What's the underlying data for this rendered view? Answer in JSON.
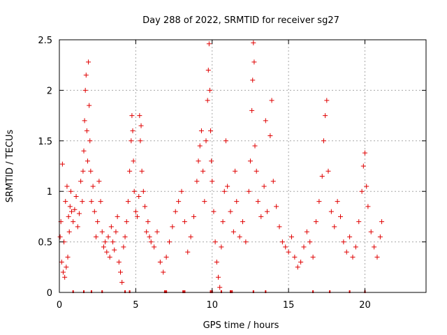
{
  "chart_data": {
    "type": "scatter",
    "title": "Day 288 of 2022, SRMTID for receiver sg27",
    "xlabel": "GPS time / hours",
    "ylabel": "SRMTID / TECUs",
    "xlim": [
      0,
      24
    ],
    "ylim": [
      0,
      2.5
    ],
    "x_ticks": [
      0,
      5,
      10,
      15,
      20
    ],
    "x_tick_labels": [
      "0",
      "5",
      "10",
      "15",
      "20"
    ],
    "y_ticks": [
      0,
      0.5,
      1,
      1.5,
      2,
      2.5
    ],
    "y_tick_labels": [
      "0",
      "0.5",
      "1",
      "1.5",
      "2",
      "2.5"
    ],
    "grid": true,
    "marker": "+",
    "color": "#e00000",
    "series": [
      {
        "name": "SRMTID",
        "points": [
          [
            0.05,
            0.55
          ],
          [
            0.1,
            0.7
          ],
          [
            0.15,
            0.3
          ],
          [
            0.2,
            1.27
          ],
          [
            0.25,
            0.2
          ],
          [
            0.3,
            0.5
          ],
          [
            0.35,
            0.15
          ],
          [
            0.4,
            0.9
          ],
          [
            0.45,
            0.25
          ],
          [
            0.5,
            1.05
          ],
          [
            0.55,
            0.35
          ],
          [
            0.6,
            0.75
          ],
          [
            0.65,
            0.6
          ],
          [
            0.7,
            0.85
          ],
          [
            0.75,
            1.0
          ],
          [
            0.8,
            0.8
          ],
          [
            0.9,
            0.7
          ],
          [
            1.0,
            0.82
          ],
          [
            1.1,
            0.95
          ],
          [
            1.2,
            0.65
          ],
          [
            1.3,
            0.78
          ],
          [
            1.4,
            1.1
          ],
          [
            1.5,
            0.9
          ],
          [
            1.55,
            1.2
          ],
          [
            1.6,
            1.4
          ],
          [
            1.65,
            1.7
          ],
          [
            1.7,
            2.0
          ],
          [
            1.75,
            2.15
          ],
          [
            1.8,
            1.6
          ],
          [
            1.85,
            1.3
          ],
          [
            1.9,
            2.28
          ],
          [
            1.95,
            1.85
          ],
          [
            2.0,
            1.5
          ],
          [
            2.05,
            1.2
          ],
          [
            2.1,
            0.9
          ],
          [
            2.2,
            1.05
          ],
          [
            2.3,
            0.8
          ],
          [
            2.4,
            0.55
          ],
          [
            2.5,
            0.7
          ],
          [
            2.6,
            1.1
          ],
          [
            2.7,
            0.9
          ],
          [
            2.8,
            0.6
          ],
          [
            2.9,
            0.45
          ],
          [
            3.0,
            0.5
          ],
          [
            3.1,
            0.4
          ],
          [
            3.2,
            0.55
          ],
          [
            3.3,
            0.35
          ],
          [
            3.4,
            0.65
          ],
          [
            3.5,
            0.5
          ],
          [
            3.6,
            0.42
          ],
          [
            3.7,
            0.6
          ],
          [
            3.8,
            0.75
          ],
          [
            3.9,
            0.3
          ],
          [
            4.0,
            0.2
          ],
          [
            4.1,
            0.1
          ],
          [
            4.2,
            0.45
          ],
          [
            4.3,
            0.55
          ],
          [
            4.4,
            0.7
          ],
          [
            4.5,
            0.9
          ],
          [
            4.6,
            1.2
          ],
          [
            4.7,
            1.5
          ],
          [
            4.75,
            1.75
          ],
          [
            4.8,
            1.6
          ],
          [
            4.85,
            1.3
          ],
          [
            4.9,
            1.0
          ],
          [
            5.0,
            0.8
          ],
          [
            5.1,
            0.75
          ],
          [
            5.2,
            0.95
          ],
          [
            5.25,
            1.75
          ],
          [
            5.3,
            1.5
          ],
          [
            5.35,
            1.65
          ],
          [
            5.4,
            1.2
          ],
          [
            5.5,
            1.0
          ],
          [
            5.6,
            0.85
          ],
          [
            5.7,
            0.6
          ],
          [
            5.8,
            0.7
          ],
          [
            5.9,
            0.55
          ],
          [
            6.0,
            0.5
          ],
          [
            6.2,
            0.45
          ],
          [
            6.4,
            0.6
          ],
          [
            6.6,
            0.3
          ],
          [
            6.8,
            0.2
          ],
          [
            7.0,
            0.35
          ],
          [
            7.2,
            0.5
          ],
          [
            7.4,
            0.65
          ],
          [
            7.6,
            0.8
          ],
          [
            7.8,
            0.9
          ],
          [
            8.0,
            1.0
          ],
          [
            8.2,
            0.7
          ],
          [
            8.4,
            0.4
          ],
          [
            8.6,
            0.55
          ],
          [
            8.8,
            0.75
          ],
          [
            9.0,
            1.1
          ],
          [
            9.1,
            1.3
          ],
          [
            9.2,
            1.45
          ],
          [
            9.3,
            1.6
          ],
          [
            9.4,
            1.2
          ],
          [
            9.5,
            0.9
          ],
          [
            9.6,
            1.5
          ],
          [
            9.7,
            1.9
          ],
          [
            9.75,
            2.2
          ],
          [
            9.8,
            2.46
          ],
          [
            9.85,
            2.0
          ],
          [
            9.9,
            1.6
          ],
          [
            9.95,
            1.3
          ],
          [
            10.0,
            1.1
          ],
          [
            10.1,
            0.8
          ],
          [
            10.2,
            0.5
          ],
          [
            10.3,
            0.3
          ],
          [
            10.4,
            0.15
          ],
          [
            10.5,
            0.05
          ],
          [
            10.6,
            0.45
          ],
          [
            10.7,
            0.7
          ],
          [
            10.8,
            1.0
          ],
          [
            10.9,
            1.5
          ],
          [
            11.0,
            1.05
          ],
          [
            11.2,
            0.8
          ],
          [
            11.4,
            0.6
          ],
          [
            11.5,
            1.2
          ],
          [
            11.6,
            0.9
          ],
          [
            11.8,
            0.55
          ],
          [
            12.0,
            0.7
          ],
          [
            12.2,
            0.5
          ],
          [
            12.4,
            1.0
          ],
          [
            12.5,
            1.3
          ],
          [
            12.6,
            1.8
          ],
          [
            12.65,
            2.1
          ],
          [
            12.7,
            2.47
          ],
          [
            12.75,
            2.28
          ],
          [
            12.8,
            1.45
          ],
          [
            12.9,
            1.2
          ],
          [
            13.0,
            0.9
          ],
          [
            13.2,
            0.75
          ],
          [
            13.4,
            1.05
          ],
          [
            13.5,
            1.7
          ],
          [
            13.6,
            0.8
          ],
          [
            13.8,
            1.55
          ],
          [
            13.9,
            1.9
          ],
          [
            14.0,
            1.1
          ],
          [
            14.2,
            0.85
          ],
          [
            14.4,
            0.65
          ],
          [
            14.6,
            0.5
          ],
          [
            14.8,
            0.45
          ],
          [
            15.0,
            0.4
          ],
          [
            15.2,
            0.55
          ],
          [
            15.4,
            0.35
          ],
          [
            15.6,
            0.25
          ],
          [
            15.8,
            0.3
          ],
          [
            16.0,
            0.45
          ],
          [
            16.2,
            0.6
          ],
          [
            16.4,
            0.5
          ],
          [
            16.6,
            0.35
          ],
          [
            16.8,
            0.7
          ],
          [
            17.0,
            0.9
          ],
          [
            17.2,
            1.15
          ],
          [
            17.3,
            1.5
          ],
          [
            17.4,
            1.75
          ],
          [
            17.5,
            1.9
          ],
          [
            17.6,
            1.2
          ],
          [
            17.8,
            0.8
          ],
          [
            18.0,
            0.65
          ],
          [
            18.2,
            0.9
          ],
          [
            18.4,
            0.75
          ],
          [
            18.6,
            0.5
          ],
          [
            18.8,
            0.4
          ],
          [
            19.0,
            0.55
          ],
          [
            19.2,
            0.35
          ],
          [
            19.4,
            0.45
          ],
          [
            19.6,
            0.7
          ],
          [
            19.8,
            1.0
          ],
          [
            19.9,
            1.25
          ],
          [
            20.0,
            1.38
          ],
          [
            20.1,
            1.05
          ],
          [
            20.2,
            0.85
          ],
          [
            20.4,
            0.6
          ],
          [
            20.6,
            0.45
          ],
          [
            20.8,
            0.35
          ],
          [
            21.0,
            0.55
          ],
          [
            21.1,
            0.7
          ]
        ]
      }
    ],
    "baseline_marks_x": [
      0.9,
      1.6,
      2.1,
      2.8,
      4.3,
      4.6,
      6.9,
      7.0,
      8.1,
      8.2,
      9.9,
      10.0,
      10.6,
      11.2,
      11.3,
      12.7,
      13.5,
      16.6,
      17.7,
      19.0,
      20.0
    ]
  }
}
